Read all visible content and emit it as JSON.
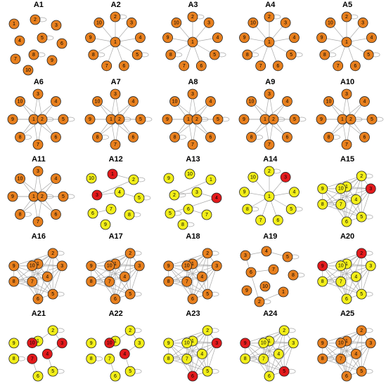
{
  "figure": {
    "colors": {
      "orange": "#e8801e",
      "yellow": "#f2ee1a",
      "red": "#e31a1c",
      "edge": "#a9a9a9"
    },
    "panels": [
      {
        "title": "A1",
        "layout": "scatter",
        "colors": [
          "o",
          "o",
          "o",
          "o",
          "o",
          "o",
          "o",
          "o",
          "o",
          "o"
        ],
        "edges": []
      },
      {
        "title": "A2",
        "layout": "star",
        "colors": [
          "o",
          "o",
          "o",
          "o",
          "o",
          "o",
          "o",
          "o",
          "o",
          "o"
        ],
        "edges": "star"
      },
      {
        "title": "A3",
        "layout": "star",
        "colors": [
          "o",
          "o",
          "o",
          "o",
          "o",
          "o",
          "o",
          "o",
          "o",
          "o"
        ],
        "edges": "star"
      },
      {
        "title": "A4",
        "layout": "star",
        "colors": [
          "o",
          "o",
          "o",
          "o",
          "o",
          "o",
          "o",
          "o",
          "o",
          "o"
        ],
        "edges": "star"
      },
      {
        "title": "A5",
        "layout": "star",
        "colors": [
          "o",
          "o",
          "o",
          "o",
          "o",
          "o",
          "o",
          "o",
          "o",
          "o"
        ],
        "edges": "star"
      },
      {
        "title": "A6",
        "layout": "star2",
        "colors": [
          "o",
          "o",
          "o",
          "o",
          "o",
          "o",
          "o",
          "o",
          "o",
          "o"
        ],
        "edges": "star2"
      },
      {
        "title": "A7",
        "layout": "star2",
        "colors": [
          "o",
          "o",
          "o",
          "o",
          "o",
          "o",
          "o",
          "o",
          "o",
          "o"
        ],
        "edges": "star2"
      },
      {
        "title": "A8",
        "layout": "star2",
        "colors": [
          "o",
          "o",
          "o",
          "o",
          "o",
          "o",
          "o",
          "o",
          "o",
          "o"
        ],
        "edges": "star2"
      },
      {
        "title": "A9",
        "layout": "star2",
        "colors": [
          "o",
          "o",
          "o",
          "o",
          "o",
          "o",
          "o",
          "o",
          "o",
          "o"
        ],
        "edges": "star2"
      },
      {
        "title": "A10",
        "layout": "star2",
        "colors": [
          "o",
          "o",
          "o",
          "o",
          "o",
          "o",
          "o",
          "o",
          "o",
          "o"
        ],
        "edges": "star2"
      },
      {
        "title": "A11",
        "layout": "star2",
        "colors": [
          "o",
          "o",
          "o",
          "o",
          "o",
          "o",
          "o",
          "o",
          "o",
          "o"
        ],
        "edges": "star2"
      },
      {
        "title": "A12",
        "layout": "scatter",
        "colors": [
          "r",
          "y",
          "r",
          "y",
          "y",
          "y",
          "y",
          "y",
          "y",
          "y"
        ],
        "edges": "few"
      },
      {
        "title": "A13",
        "layout": "scatter",
        "colors": [
          "y",
          "y",
          "y",
          "r",
          "y",
          "y",
          "y",
          "y",
          "y",
          "y"
        ],
        "edges": "few"
      },
      {
        "title": "A14",
        "layout": "star",
        "colors": [
          "y",
          "y",
          "r",
          "y",
          "y",
          "y",
          "y",
          "y",
          "y",
          "y"
        ],
        "edges": "star"
      },
      {
        "title": "A15",
        "layout": "dense",
        "colors": [
          "y",
          "y",
          "r",
          "y",
          "y",
          "y",
          "y",
          "y",
          "y",
          "y"
        ],
        "edges": "dense"
      },
      {
        "title": "A16",
        "layout": "dense",
        "colors": [
          "o",
          "o",
          "o",
          "o",
          "o",
          "o",
          "o",
          "o",
          "o",
          "o"
        ],
        "edges": "dense"
      },
      {
        "title": "A17",
        "layout": "dense",
        "colors": [
          "o",
          "o",
          "o",
          "o",
          "o",
          "o",
          "o",
          "o",
          "o",
          "o"
        ],
        "edges": "dense"
      },
      {
        "title": "A18",
        "layout": "dense",
        "colors": [
          "o",
          "o",
          "o",
          "o",
          "o",
          "o",
          "o",
          "o",
          "o",
          "o"
        ],
        "edges": "dense"
      },
      {
        "title": "A19",
        "layout": "scatter",
        "colors": [
          "o",
          "o",
          "o",
          "o",
          "o",
          "o",
          "o",
          "o",
          "o",
          "o"
        ],
        "edges": "few"
      },
      {
        "title": "A20",
        "layout": "dense",
        "colors": [
          "y",
          "r",
          "y",
          "y",
          "y",
          "y",
          "y",
          "y",
          "r",
          "y"
        ],
        "edges": "dense"
      },
      {
        "title": "A21",
        "layout": "dense",
        "colors": [
          "y",
          "y",
          "r",
          "r",
          "y",
          "y",
          "r",
          "y",
          "y",
          "r"
        ],
        "edges": "few"
      },
      {
        "title": "A22",
        "layout": "dense",
        "colors": [
          "y",
          "y",
          "y",
          "r",
          "y",
          "y",
          "y",
          "y",
          "y",
          "r"
        ],
        "edges": "few"
      },
      {
        "title": "A23",
        "layout": "dense",
        "colors": [
          "y",
          "y",
          "r",
          "y",
          "y",
          "r",
          "y",
          "y",
          "y",
          "y"
        ],
        "edges": "dense"
      },
      {
        "title": "A24",
        "layout": "dense",
        "colors": [
          "y",
          "y",
          "y",
          "y",
          "r",
          "y",
          "y",
          "y",
          "r",
          "y"
        ],
        "edges": "dense"
      },
      {
        "title": "A25",
        "layout": "dense",
        "colors": [
          "o",
          "o",
          "o",
          "o",
          "o",
          "o",
          "o",
          "o",
          "o",
          "o"
        ],
        "edges": "dense"
      }
    ],
    "node_labels": [
      "1",
      "2",
      "3",
      "4",
      "5",
      "6",
      "7",
      "8",
      "9",
      "10"
    ]
  }
}
